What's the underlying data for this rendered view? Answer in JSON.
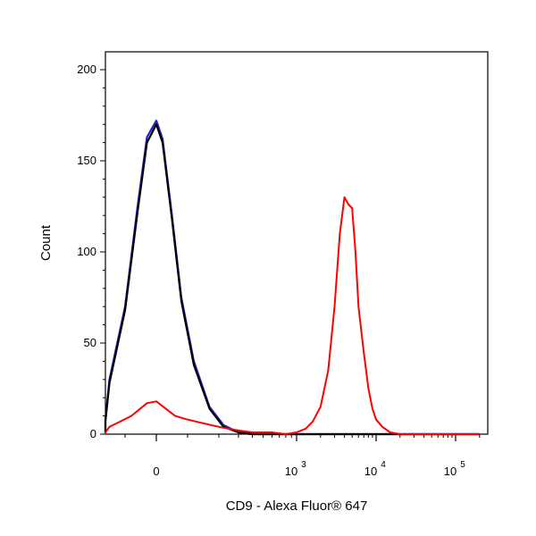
{
  "chart_data": {
    "type": "line",
    "xlabel": "CD9 - Alexa Fluor® 647",
    "ylabel": "Count",
    "ylim": [
      0,
      200
    ],
    "x_scale": "biexponential",
    "xlim": [
      -400,
      200000
    ],
    "grid": false,
    "legend": "none",
    "y_ticks": [
      0,
      50,
      100,
      150,
      200
    ],
    "y_tick_labels": [
      "0",
      "50",
      "100",
      "150",
      "200"
    ],
    "x_ticks": [
      {
        "value": 0,
        "base": "0",
        "exp": ""
      },
      {
        "value": 1000,
        "base": "10",
        "exp": "3"
      },
      {
        "value": 10000,
        "base": "10",
        "exp": "4"
      },
      {
        "value": 100000,
        "base": "10",
        "exp": "5"
      }
    ],
    "series": [
      {
        "color": "#2222cc",
        "x": [
          -400,
          -300,
          -200,
          -150,
          -100,
          -60,
          -30,
          0,
          20,
          50,
          80,
          120,
          170,
          220,
          300,
          400,
          600,
          1000,
          10000,
          200000
        ],
        "y": [
          0,
          1,
          8,
          30,
          70,
          125,
          163,
          172,
          162,
          120,
          75,
          40,
          15,
          5,
          1,
          0,
          0,
          0,
          0,
          0
        ]
      },
      {
        "color": "#000000",
        "x": [
          -400,
          -300,
          -200,
          -150,
          -100,
          -60,
          -30,
          0,
          20,
          50,
          80,
          120,
          170,
          220,
          300,
          400,
          600,
          1000,
          10000,
          200000
        ],
        "y": [
          0,
          1,
          7,
          28,
          68,
          122,
          160,
          170,
          160,
          118,
          73,
          38,
          14,
          4,
          1,
          0,
          0,
          0,
          0,
          0
        ]
      },
      {
        "color": "#ff0000",
        "x": [
          -400,
          -250,
          -150,
          -80,
          -30,
          0,
          30,
          60,
          100,
          150,
          200,
          300,
          400,
          600,
          800,
          1000,
          1300,
          1600,
          2000,
          2500,
          3000,
          3500,
          4000,
          4500,
          5000,
          5500,
          6000,
          7000,
          8000,
          9000,
          10000,
          12000,
          15000,
          20000,
          50000,
          200000
        ],
        "y": [
          0,
          1,
          4,
          10,
          17,
          18,
          14,
          10,
          8,
          6,
          4,
          2,
          1,
          1,
          0,
          1,
          3,
          7,
          15,
          35,
          70,
          110,
          130,
          126,
          124,
          100,
          70,
          45,
          25,
          14,
          8,
          4,
          1,
          0,
          0,
          0
        ]
      }
    ]
  }
}
